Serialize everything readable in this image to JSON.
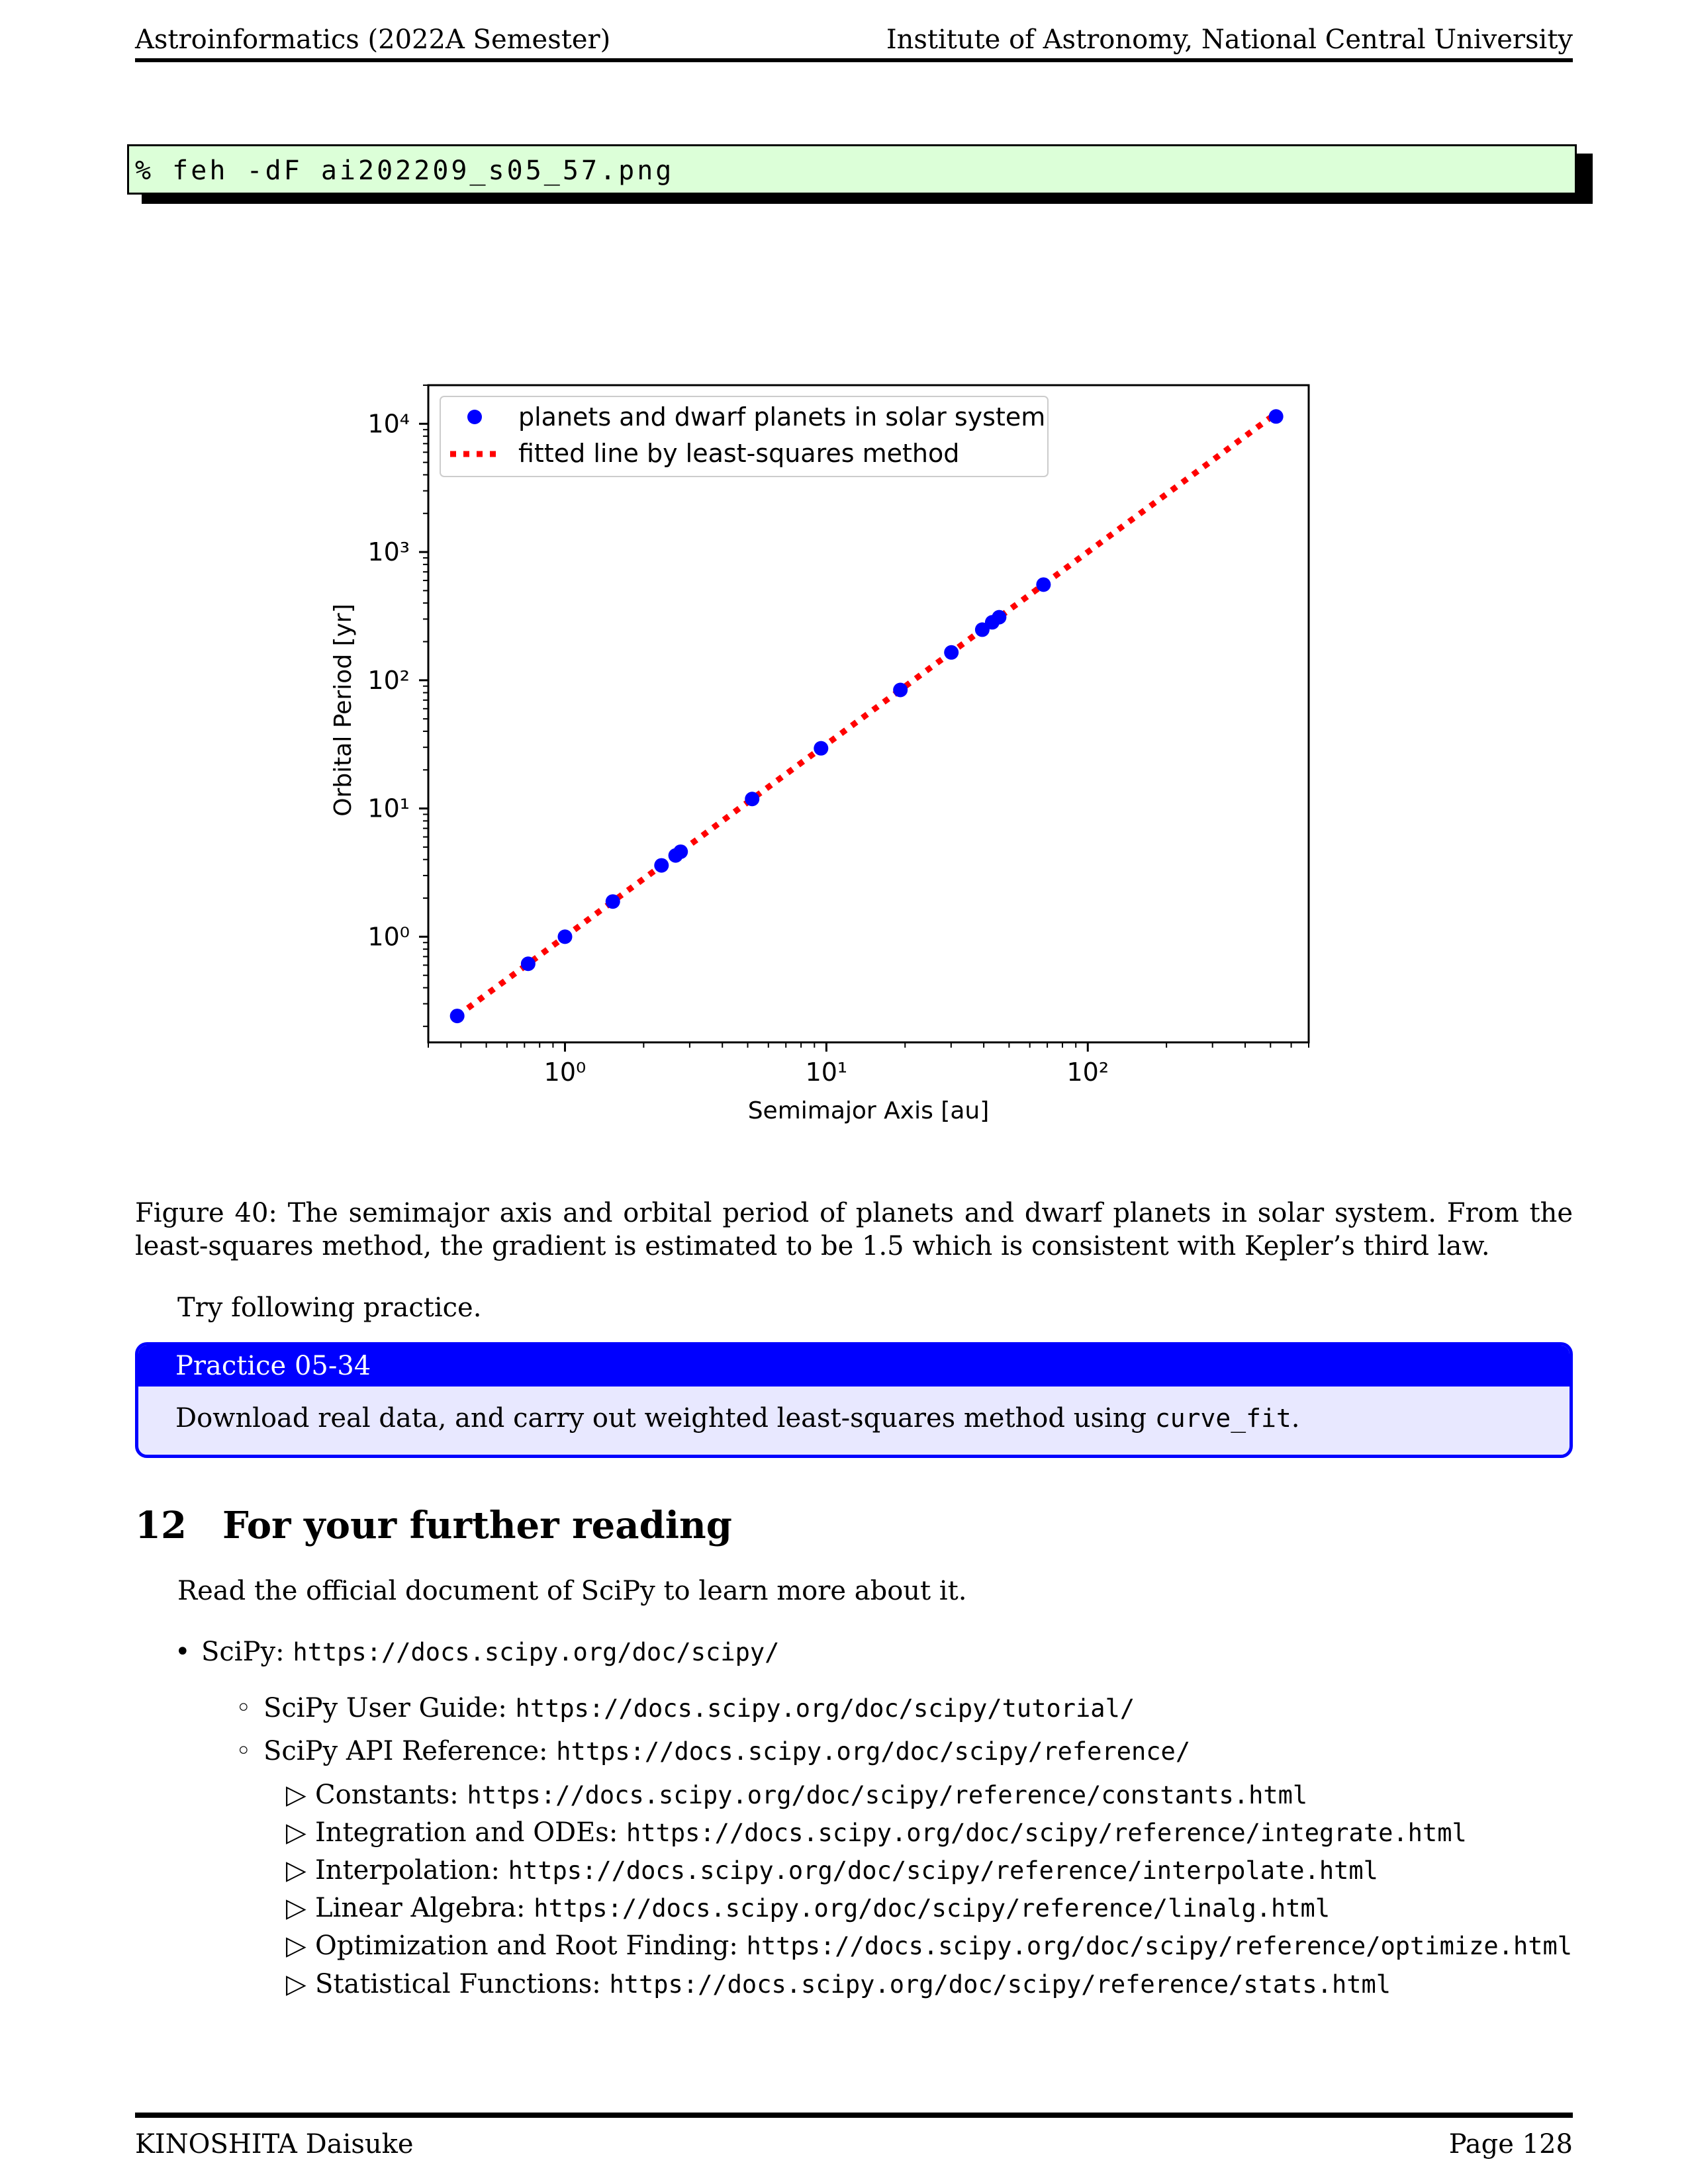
{
  "header": {
    "left": "Astroinformatics (2022A Semester)",
    "right": "Institute of Astronomy, National Central University"
  },
  "command": "% feh -dF ai202209_s05_57.png",
  "chart_data": {
    "type": "scatter",
    "xscale": "log",
    "yscale": "log",
    "xlabel": "Semimajor Axis [au]",
    "ylabel": "Orbital Period [yr]",
    "xlim": [
      0.3,
      700
    ],
    "ylim": [
      0.15,
      20000
    ],
    "xticks": [
      1,
      10,
      100
    ],
    "yticks": [
      1,
      10,
      100,
      1000,
      10000
    ],
    "legend_position": "upper-left",
    "series": [
      {
        "name": "planets and dwarf planets in solar system",
        "kind": "scatter",
        "color": "#0000ff",
        "points": [
          {
            "x": 0.387,
            "y": 0.241
          },
          {
            "x": 0.723,
            "y": 0.615
          },
          {
            "x": 1.0,
            "y": 1.0
          },
          {
            "x": 1.524,
            "y": 1.881
          },
          {
            "x": 2.34,
            "y": 3.6
          },
          {
            "x": 2.65,
            "y": 4.3
          },
          {
            "x": 2.77,
            "y": 4.6
          },
          {
            "x": 5.2,
            "y": 11.86
          },
          {
            "x": 9.54,
            "y": 29.46
          },
          {
            "x": 19.19,
            "y": 84.0
          },
          {
            "x": 30.07,
            "y": 164.8
          },
          {
            "x": 39.48,
            "y": 248.0
          },
          {
            "x": 43.1,
            "y": 283.0
          },
          {
            "x": 45.8,
            "y": 310.0
          },
          {
            "x": 67.7,
            "y": 557.0
          },
          {
            "x": 525.0,
            "y": 11400.0
          }
        ]
      },
      {
        "name": "fitted line by least-squares method",
        "kind": "line",
        "style": "dotted",
        "color": "#ff0000",
        "points": [
          {
            "x": 0.387,
            "y": 0.241
          },
          {
            "x": 525.0,
            "y": 12030.0
          }
        ]
      }
    ]
  },
  "caption": "Figure 40: The semimajor axis and orbital period of planets and dwarf planets in solar system. From the least-squares method, the gradient is estimated to be 1.5 which is consistent with Kepler’s third law.",
  "try_text": "Try following practice.",
  "practice": {
    "title": "Practice 05-34",
    "body_pre": "Download real data, and carry out weighted least-squares method using ",
    "body_code": "curve_fit",
    "body_post": "."
  },
  "section": {
    "number": "12",
    "title": "For your further reading"
  },
  "intro": "Read the official document of SciPy to learn more about it.",
  "links": {
    "scipy": {
      "marker": "•",
      "label": "SciPy: ",
      "url": "https://docs.scipy.org/doc/scipy/"
    },
    "guide": {
      "marker": "◦",
      "label": "SciPy User Guide: ",
      "url": "https://docs.scipy.org/doc/scipy/tutorial/"
    },
    "api": {
      "marker": "◦",
      "label": "SciPy API Reference: ",
      "url": "https://docs.scipy.org/doc/scipy/reference/"
    },
    "constants": {
      "marker": "▷",
      "label": "Constants: ",
      "url": "https://docs.scipy.org/doc/scipy/reference/constants.html"
    },
    "integrate": {
      "marker": "▷",
      "label": "Integration and ODEs: ",
      "url": "https://docs.scipy.org/doc/scipy/reference/integrate.html"
    },
    "interpolate": {
      "marker": "▷",
      "label": "Interpolation: ",
      "url": "https://docs.scipy.org/doc/scipy/reference/interpolate.html"
    },
    "linalg": {
      "marker": "▷",
      "label": "Linear Algebra: ",
      "url": "https://docs.scipy.org/doc/scipy/reference/linalg.html"
    },
    "optimize": {
      "marker": "▷",
      "label": "Optimization and Root Finding: ",
      "url": "https://docs.scipy.org/doc/scipy/reference/optimize.html"
    },
    "stats": {
      "marker": "▷",
      "label": "Statistical Functions: ",
      "url": "https://docs.scipy.org/doc/scipy/reference/stats.html"
    }
  },
  "footer": {
    "left": "KINOSHITA Daisuke",
    "right": "Page 128"
  }
}
